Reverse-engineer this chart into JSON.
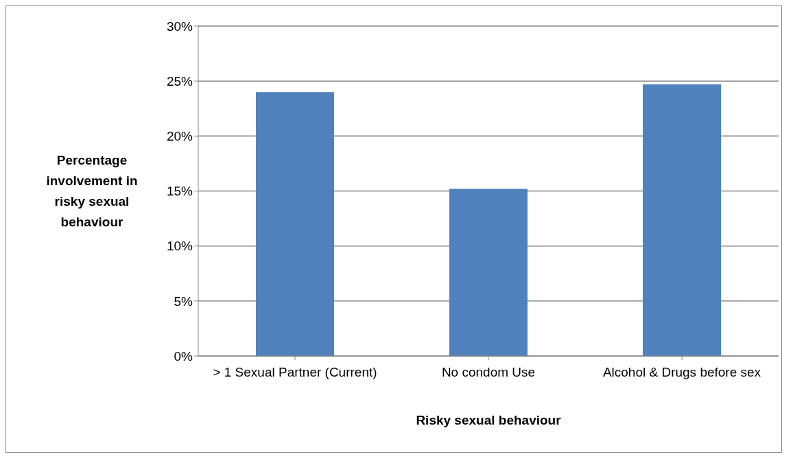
{
  "chart_data": {
    "type": "bar",
    "categories": [
      "> 1 Sexual Partner (Current)",
      "No condom Use",
      "Alcohol & Drugs before sex"
    ],
    "values": [
      24.0,
      15.2,
      24.7
    ],
    "color": "#4f81bd",
    "xlabel": "Risky sexual behaviour",
    "ylabel": "Percentage involvement in risky sexual behaviour",
    "ylim": [
      0,
      30
    ],
    "yticks": [
      {
        "value": 0,
        "label": "0%"
      },
      {
        "value": 5,
        "label": "5%"
      },
      {
        "value": 10,
        "label": "10%"
      },
      {
        "value": 15,
        "label": "15%"
      },
      {
        "value": 20,
        "label": "20%"
      },
      {
        "value": 25,
        "label": "25%"
      },
      {
        "value": 30,
        "label": "30%"
      }
    ],
    "grid": "y",
    "legend": false
  }
}
